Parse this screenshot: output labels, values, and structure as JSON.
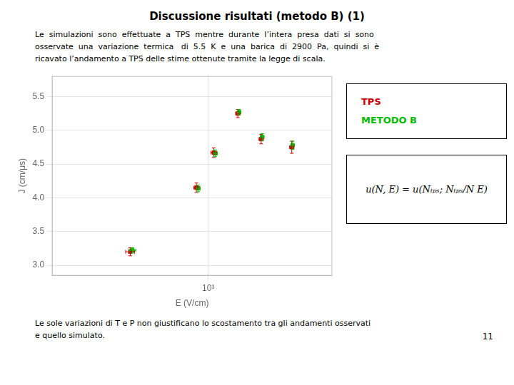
{
  "chart_data": {
    "type": "scatter",
    "title": "Discussione risultati (metodo B) (1)",
    "text_above": [
      "Le  simulazioni  sono  effettuate  a  TPS  mentre  durante  l’intera  presa  dati  si  sono",
      "osservate  una  variazione  termica   di  5.5  K  e  una  barica  di  2900  Pa,  quindi  si  è",
      "ricavato l’andamento a TPS delle stime ottenute tramite la legge di scala."
    ],
    "text_below": [
      "Le sole variazioni di T e P non giustificano lo scostamento tra gli andamenti osservati",
      "e quello simulato."
    ],
    "page_number": "11",
    "formula": "u(N, E) = u(Nₜₚₛ; Nₜₚₛ/N E)",
    "xlabel": "E (V/cm)",
    "ylabel": "J (cm/μs)",
    "log": "x",
    "grid": true,
    "legend": "right",
    "marker": "square",
    "xlim": [
      250,
      3000
    ],
    "xticks": [
      {
        "value": 1000,
        "label": "10³"
      }
    ],
    "ylim": [
      2.85,
      5.8
    ],
    "yticks": [
      {
        "value": 3,
        "label": "3.0"
      },
      3.5,
      {
        "value": 4,
        "label": "4.0"
      },
      4.5,
      {
        "value": 5,
        "label": "5.0"
      },
      5.5
    ],
    "series": [
      {
        "name": "TPS",
        "color": "#cc0000",
        "x": [
          500,
          900,
          1050,
          1300,
          1600,
          2100
        ],
        "values": [
          3.2,
          4.15,
          4.67,
          5.25,
          4.87,
          4.75
        ],
        "yerr": [
          0.06,
          0.07,
          0.07,
          0.06,
          0.07,
          0.09
        ],
        "xerr": [
          20,
          20,
          25,
          25,
          30,
          40
        ]
      },
      {
        "name": "METODO B",
        "color": "#00bb00",
        "x": [
          510,
          915,
          1065,
          1315,
          1615,
          2115
        ],
        "values": [
          3.22,
          4.14,
          4.66,
          5.27,
          4.9,
          4.78
        ],
        "yerr": [
          0.04,
          0.05,
          0.05,
          0.04,
          0.05,
          0.06
        ],
        "xerr": [
          15,
          15,
          20,
          20,
          25,
          30
        ]
      }
    ]
  }
}
